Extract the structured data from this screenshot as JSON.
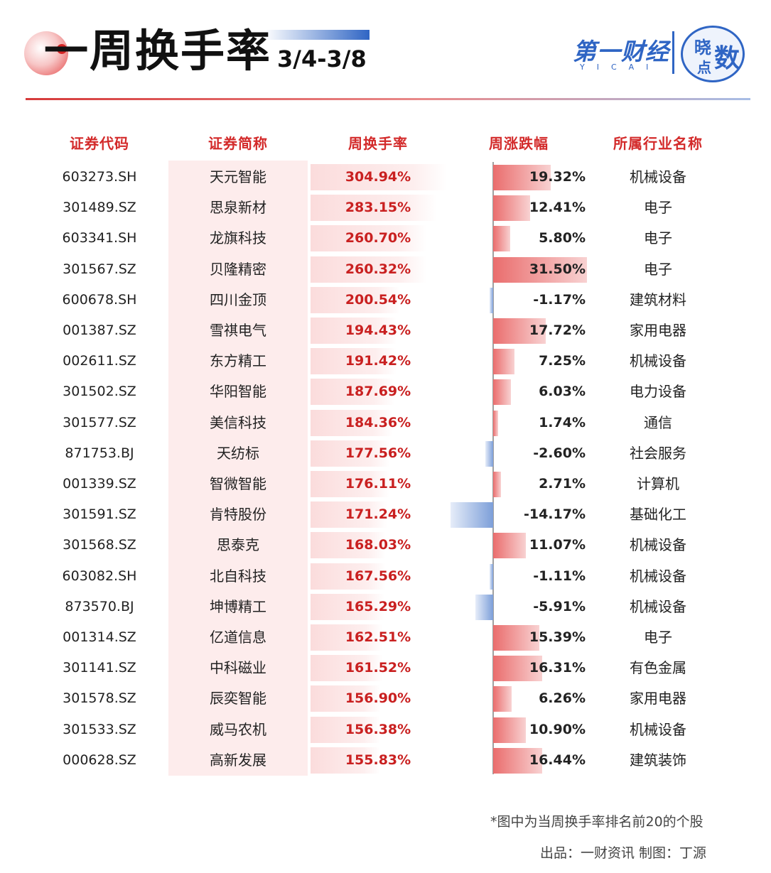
{
  "header": {
    "title": "一周换手率",
    "date_range": "3/4-3/8",
    "brand": "第一财经",
    "brand_sub": "YICAI",
    "seal_chars": [
      "晓",
      "数",
      "点"
    ]
  },
  "colors": {
    "accent_red": "#d32a2a",
    "positive": "#ea6d6d",
    "negative": "#7d9fd9",
    "brand_blue": "#2f65c4"
  },
  "chart_data": {
    "type": "table",
    "title": "一周换手率 3/4-3/8",
    "columns": [
      "证券代码",
      "证券简称",
      "周换手率",
      "周涨跌幅",
      "所属行业名称"
    ],
    "rows": [
      {
        "code": "603273.SH",
        "name": "天元智能",
        "turnover": "304.94%",
        "turnover_value": 304.94,
        "change": "19.32%",
        "change_value": 19.32,
        "industry": "机械设备"
      },
      {
        "code": "301489.SZ",
        "name": "思泉新材",
        "turnover": "283.15%",
        "turnover_value": 283.15,
        "change": "12.41%",
        "change_value": 12.41,
        "industry": "电子"
      },
      {
        "code": "603341.SH",
        "name": "龙旗科技",
        "turnover": "260.70%",
        "turnover_value": 260.7,
        "change": "5.80%",
        "change_value": 5.8,
        "industry": "电子"
      },
      {
        "code": "301567.SZ",
        "name": "贝隆精密",
        "turnover": "260.32%",
        "turnover_value": 260.32,
        "change": "31.50%",
        "change_value": 31.5,
        "industry": "电子"
      },
      {
        "code": "600678.SH",
        "name": "四川金顶",
        "turnover": "200.54%",
        "turnover_value": 200.54,
        "change": "-1.17%",
        "change_value": -1.17,
        "industry": "建筑材料"
      },
      {
        "code": "001387.SZ",
        "name": "雪祺电气",
        "turnover": "194.43%",
        "turnover_value": 194.43,
        "change": "17.72%",
        "change_value": 17.72,
        "industry": "家用电器"
      },
      {
        "code": "002611.SZ",
        "name": "东方精工",
        "turnover": "191.42%",
        "turnover_value": 191.42,
        "change": "7.25%",
        "change_value": 7.25,
        "industry": "机械设备"
      },
      {
        "code": "301502.SZ",
        "name": "华阳智能",
        "turnover": "187.69%",
        "turnover_value": 187.69,
        "change": "6.03%",
        "change_value": 6.03,
        "industry": "电力设备"
      },
      {
        "code": "301577.SZ",
        "name": "美信科技",
        "turnover": "184.36%",
        "turnover_value": 184.36,
        "change": "1.74%",
        "change_value": 1.74,
        "industry": "通信"
      },
      {
        "code": "871753.BJ",
        "name": "天纺标",
        "turnover": "177.56%",
        "turnover_value": 177.56,
        "change": "-2.60%",
        "change_value": -2.6,
        "industry": "社会服务"
      },
      {
        "code": "001339.SZ",
        "name": "智微智能",
        "turnover": "176.11%",
        "turnover_value": 176.11,
        "change": "2.71%",
        "change_value": 2.71,
        "industry": "计算机"
      },
      {
        "code": "301591.SZ",
        "name": "肯特股份",
        "turnover": "171.24%",
        "turnover_value": 171.24,
        "change": "-14.17%",
        "change_value": -14.17,
        "industry": "基础化工"
      },
      {
        "code": "301568.SZ",
        "name": "思泰克",
        "turnover": "168.03%",
        "turnover_value": 168.03,
        "change": "11.07%",
        "change_value": 11.07,
        "industry": "机械设备"
      },
      {
        "code": "603082.SH",
        "name": "北自科技",
        "turnover": "167.56%",
        "turnover_value": 167.56,
        "change": "-1.11%",
        "change_value": -1.11,
        "industry": "机械设备"
      },
      {
        "code": "873570.BJ",
        "name": "坤博精工",
        "turnover": "165.29%",
        "turnover_value": 165.29,
        "change": "-5.91%",
        "change_value": -5.91,
        "industry": "机械设备"
      },
      {
        "code": "001314.SZ",
        "name": "亿道信息",
        "turnover": "162.51%",
        "turnover_value": 162.51,
        "change": "15.39%",
        "change_value": 15.39,
        "industry": "电子"
      },
      {
        "code": "301141.SZ",
        "name": "中科磁业",
        "turnover": "161.52%",
        "turnover_value": 161.52,
        "change": "16.31%",
        "change_value": 16.31,
        "industry": "有色金属"
      },
      {
        "code": "301578.SZ",
        "name": "辰奕智能",
        "turnover": "156.90%",
        "turnover_value": 156.9,
        "change": "6.26%",
        "change_value": 6.26,
        "industry": "家用电器"
      },
      {
        "code": "301533.SZ",
        "name": "威马农机",
        "turnover": "156.38%",
        "turnover_value": 156.38,
        "change": "10.90%",
        "change_value": 10.9,
        "industry": "机械设备"
      },
      {
        "code": "000628.SZ",
        "name": "高新发展",
        "turnover": "155.83%",
        "turnover_value": 155.83,
        "change": "16.44%",
        "change_value": 16.44,
        "industry": "建筑装饰"
      }
    ]
  },
  "footer": {
    "note": "*图中为当周换手率排名前20的个股",
    "credit": "出品：一财资讯  制图：丁源"
  }
}
